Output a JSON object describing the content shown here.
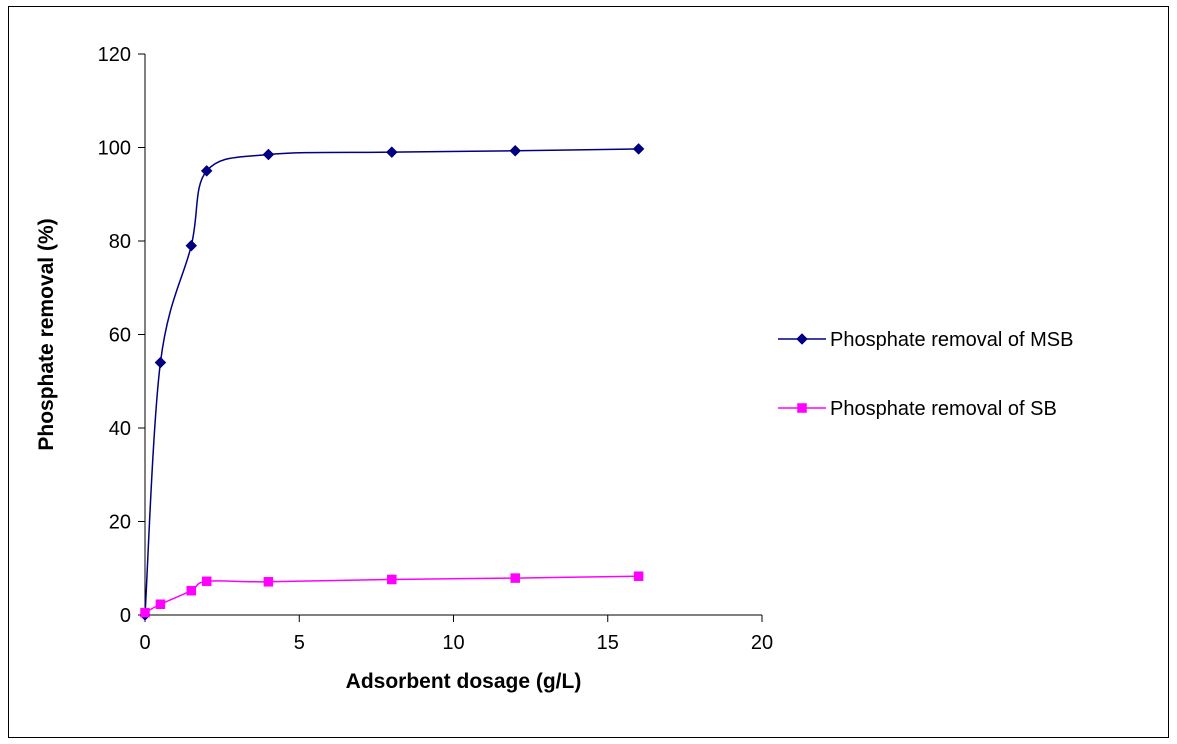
{
  "chart_data": {
    "type": "line",
    "title": "",
    "xlabel": "Adsorbent dosage (g/L)",
    "ylabel": "Phosphate removal (%)",
    "xlim": [
      0,
      20
    ],
    "ylim": [
      0,
      120
    ],
    "x_ticks": [
      0,
      5,
      10,
      15,
      20
    ],
    "y_ticks": [
      0,
      20,
      40,
      60,
      80,
      100,
      120
    ],
    "grid": false,
    "legend_position": "right",
    "series": [
      {
        "name": "Phosphate removal of MSB",
        "color": "#000080",
        "marker": "diamond",
        "x": [
          0,
          0.5,
          1.5,
          2,
          4,
          8,
          12,
          16
        ],
        "y": [
          0,
          54,
          79,
          95,
          98.5,
          99,
          99.3,
          99.7
        ]
      },
      {
        "name": "Phosphate removal of SB",
        "color": "#FF00FF",
        "marker": "square",
        "x": [
          0,
          0.5,
          1.5,
          2,
          4,
          8,
          12,
          16
        ],
        "y": [
          0.5,
          2.3,
          5.2,
          7.2,
          7.1,
          7.6,
          7.9,
          8.3
        ]
      }
    ]
  }
}
